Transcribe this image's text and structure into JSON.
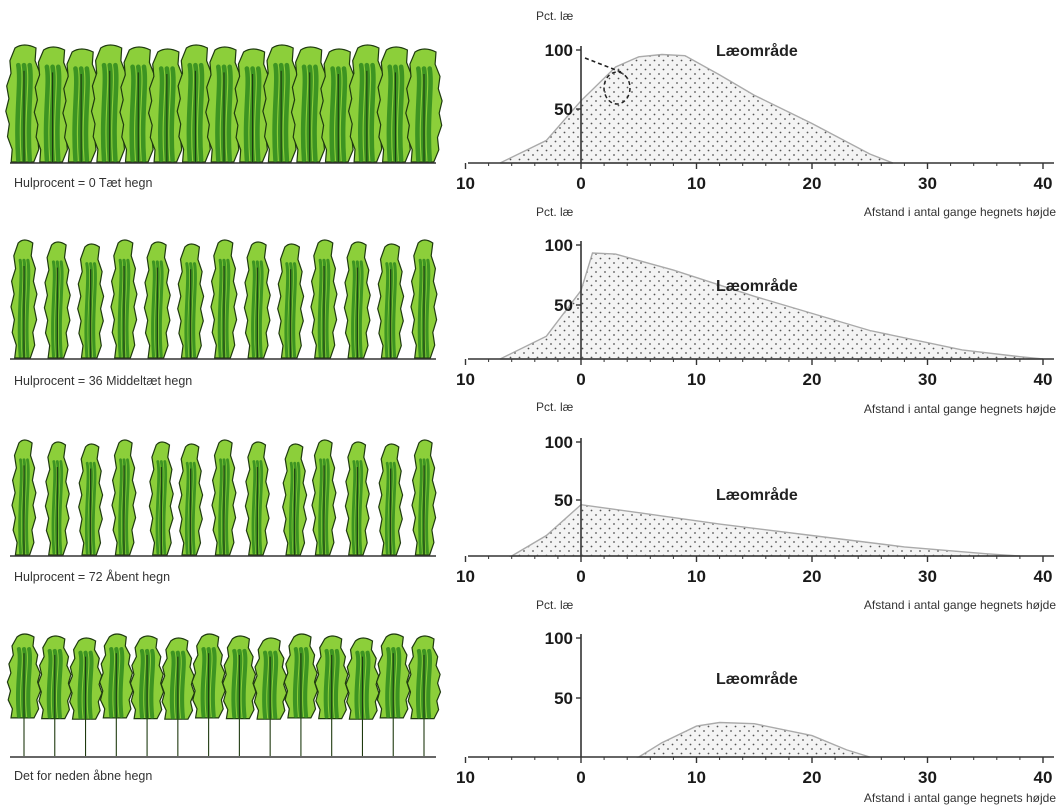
{
  "colors": {
    "tree_fill": "#8ccf3a",
    "tree_dark": "#2f8a1e",
    "tree_outline": "#1f3a10",
    "lee_fill": "#f2f2f2",
    "lee_outline": "#aaaaaa",
    "dots": "#555555",
    "axis": "#333333"
  },
  "panels": [
    {
      "hedge_label": "Hulprocent = 0 Tæt hegn",
      "tree_style": "dense",
      "tree_count": 15,
      "y_axis_title": "Pct. læ",
      "x_axis_title": "Afstand i antal gange hegnets højde",
      "zone_label": "Læområde",
      "x_ticks": [
        "10",
        "0",
        "10",
        "20",
        "30",
        "40"
      ],
      "y_ticks": [
        "100",
        "50"
      ],
      "curve": [
        [
          -7,
          0
        ],
        [
          -3,
          20
        ],
        [
          0,
          55
        ],
        [
          3,
          85
        ],
        [
          5,
          94
        ],
        [
          7,
          96
        ],
        [
          9,
          95
        ],
        [
          12,
          78
        ],
        [
          15,
          60
        ],
        [
          20,
          35
        ],
        [
          25,
          8
        ],
        [
          27,
          0
        ]
      ],
      "dashed_annotation": true
    },
    {
      "hedge_label": "Hulprocent = 36 Middeltæt hegn",
      "tree_style": "columnar",
      "tree_count": 13,
      "y_axis_title": "Pct. læ",
      "x_axis_title": "Afstand i antal gange hegnets højde",
      "zone_label": "Læområde",
      "x_ticks": [
        "10",
        "0",
        "10",
        "20",
        "30",
        "40"
      ],
      "y_ticks": [
        "100",
        "50"
      ],
      "curve": [
        [
          -7,
          0
        ],
        [
          -3,
          20
        ],
        [
          0,
          60
        ],
        [
          1,
          93
        ],
        [
          3,
          92
        ],
        [
          8,
          78
        ],
        [
          15,
          55
        ],
        [
          25,
          25
        ],
        [
          33,
          8
        ],
        [
          38,
          2
        ],
        [
          40,
          0
        ]
      ],
      "dashed_annotation": false
    },
    {
      "hedge_label": "Hulprocent = 72 Åbent hegn",
      "tree_style": "columnar-gaps",
      "tree_count": 13,
      "y_axis_title": "Pct. læ",
      "x_axis_title": "Afstand i antal gange hegnets højde",
      "zone_label": "Læområde",
      "x_ticks": [
        "10",
        "0",
        "10",
        "20",
        "30",
        "40"
      ],
      "y_ticks": [
        "100",
        "50"
      ],
      "curve": [
        [
          -6,
          0
        ],
        [
          -3,
          18
        ],
        [
          0,
          45
        ],
        [
          5,
          38
        ],
        [
          12,
          28
        ],
        [
          20,
          18
        ],
        [
          28,
          8
        ],
        [
          35,
          2
        ],
        [
          38,
          0
        ]
      ],
      "dashed_annotation": false
    },
    {
      "hedge_label": "Det for neden åbne hegn",
      "tree_style": "open-bottom",
      "tree_count": 14,
      "y_axis_title": "Pct. læ",
      "x_axis_title": "Afstand i antal gange hegnets højde",
      "zone_label": "Læområde",
      "x_ticks": [
        "10",
        "0",
        "10",
        "20",
        "30",
        "40"
      ],
      "y_ticks": [
        "100",
        "50"
      ],
      "curve": [
        [
          5,
          0
        ],
        [
          7,
          12
        ],
        [
          10,
          26
        ],
        [
          12,
          29
        ],
        [
          15,
          28
        ],
        [
          20,
          18
        ],
        [
          23,
          6
        ],
        [
          25,
          0
        ]
      ],
      "dashed_annotation": false
    }
  ]
}
